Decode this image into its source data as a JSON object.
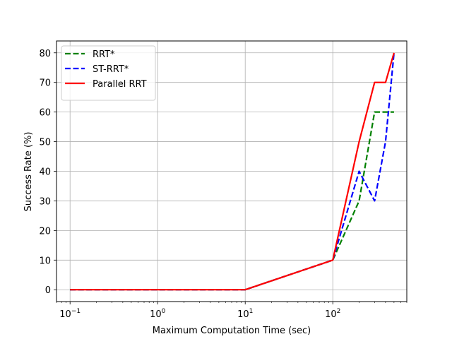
{
  "chart_data": {
    "type": "line",
    "xlabel": "Maximum Computation Time (sec)",
    "ylabel": "Success Rate (%)",
    "xscale": "log",
    "xlim": [
      0.07,
      700
    ],
    "ylim": [
      -4,
      84
    ],
    "grid": true,
    "legend_position": "top-left",
    "xticks": [
      {
        "value": 0.1,
        "mantissa": "10",
        "exponent": "−1"
      },
      {
        "value": 1,
        "mantissa": "10",
        "exponent": "0"
      },
      {
        "value": 10,
        "mantissa": "10",
        "exponent": "1"
      },
      {
        "value": 100,
        "mantissa": "10",
        "exponent": "2"
      }
    ],
    "yticks": [
      0,
      10,
      20,
      30,
      40,
      50,
      60,
      70,
      80
    ],
    "series": [
      {
        "name": "RRT*",
        "color": "#008000",
        "dash": "dashed",
        "x": [
          0.1,
          1,
          10,
          100,
          200,
          300,
          400,
          500
        ],
        "y": [
          0,
          0,
          0,
          10,
          30,
          60,
          60,
          60
        ]
      },
      {
        "name": "ST-RRT*",
        "color": "#0000ff",
        "dash": "dashed",
        "x": [
          0.1,
          1,
          10,
          100,
          200,
          300,
          400,
          500
        ],
        "y": [
          0,
          0,
          0,
          10,
          40,
          30,
          50,
          80
        ]
      },
      {
        "name": "Parallel RRT",
        "color": "#ff0000",
        "dash": "solid",
        "x": [
          0.1,
          1,
          10,
          100,
          200,
          300,
          400,
          500
        ],
        "y": [
          0,
          0,
          0,
          10,
          50,
          70,
          70,
          80
        ]
      }
    ]
  }
}
